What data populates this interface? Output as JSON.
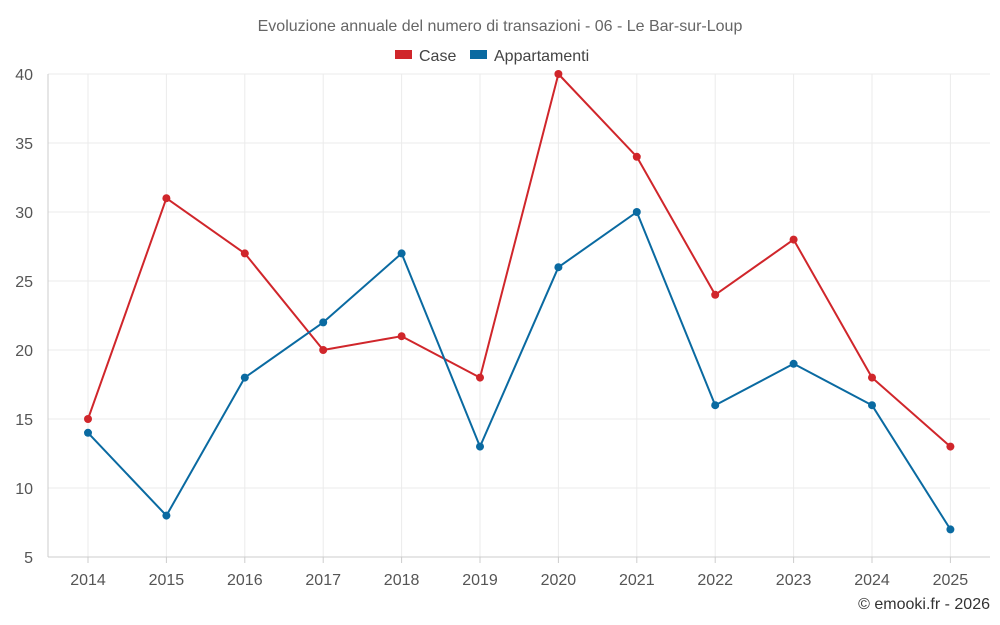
{
  "chart_data": {
    "type": "line",
    "title": "Evoluzione annuale del numero di transazioni - 06 - Le Bar-sur-Loup",
    "xlabel": "",
    "ylabel": "",
    "categories": [
      "2014",
      "2015",
      "2016",
      "2017",
      "2018",
      "2019",
      "2020",
      "2021",
      "2022",
      "2023",
      "2024",
      "2025"
    ],
    "ylim": [
      5,
      40
    ],
    "yticks": [
      5,
      10,
      15,
      20,
      25,
      30,
      35,
      40
    ],
    "grid": true,
    "legend_position": "top-center",
    "series": [
      {
        "name": "Case",
        "color": "#d0262b",
        "values": [
          15,
          31,
          27,
          20,
          21,
          18,
          40,
          34,
          24,
          28,
          18,
          13
        ]
      },
      {
        "name": "Appartamenti",
        "color": "#0a6aa1",
        "values": [
          14,
          8,
          18,
          22,
          27,
          13,
          26,
          30,
          16,
          19,
          16,
          7
        ]
      }
    ]
  },
  "credit": "© emooki.fr - 2026"
}
